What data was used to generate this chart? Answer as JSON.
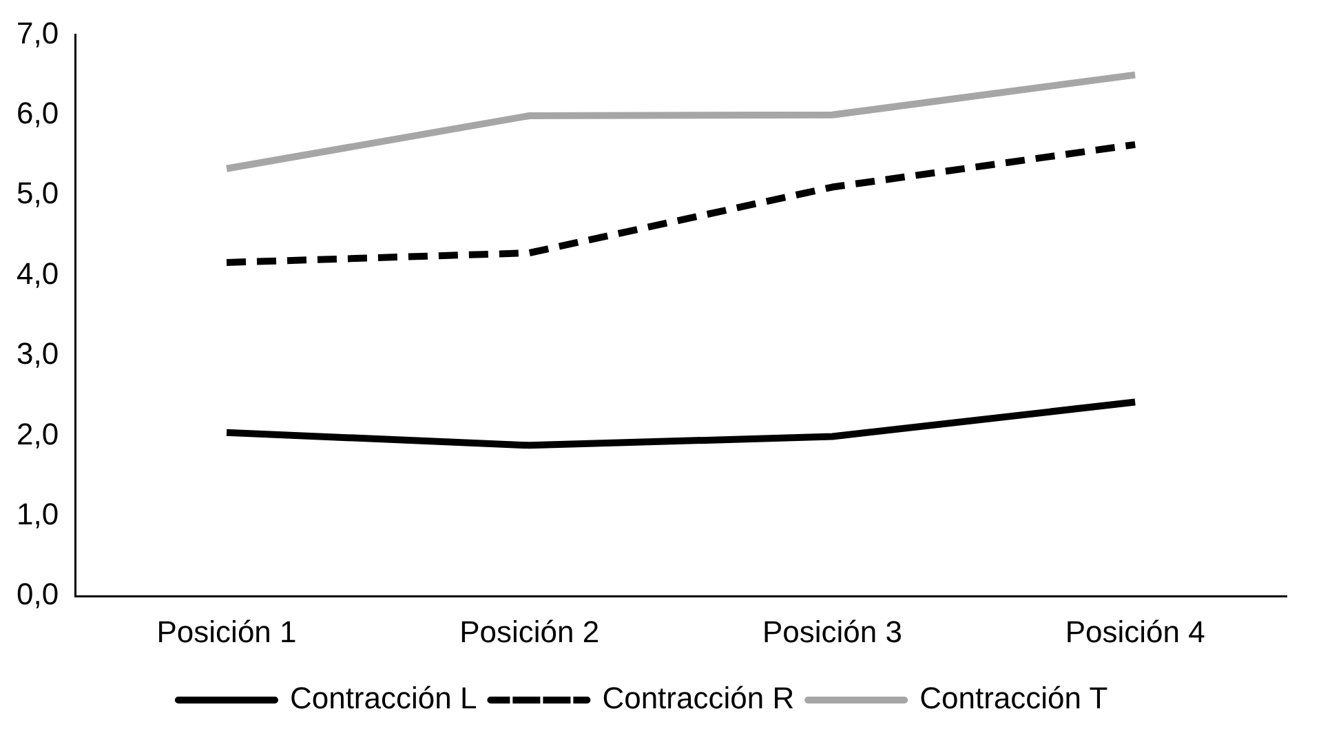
{
  "chart_data": {
    "type": "line",
    "categories": [
      "Posición 1",
      "Posición 2",
      "Posición 3",
      "Posición 4"
    ],
    "series": [
      {
        "name": "Contracción L",
        "color": "#000000",
        "line_style": "solid",
        "values": [
          2.04,
          1.88,
          1.99,
          2.42
        ]
      },
      {
        "name": "Contracción R",
        "color": "#000000",
        "line_style": "dashed",
        "values": [
          4.16,
          4.28,
          5.1,
          5.63
        ]
      },
      {
        "name": "Contracción T",
        "color": "#a6a6a6",
        "line_style": "solid",
        "values": [
          5.33,
          5.99,
          6.0,
          6.5
        ]
      }
    ],
    "ylim": [
      0,
      7
    ],
    "yticks": [
      {
        "value": 0,
        "label": "0,0"
      },
      {
        "value": 1,
        "label": "1,0"
      },
      {
        "value": 2,
        "label": "2,0"
      },
      {
        "value": 3,
        "label": "3,0"
      },
      {
        "value": 4,
        "label": "4,0"
      },
      {
        "value": 5,
        "label": "5,0"
      },
      {
        "value": 6,
        "label": "6,0"
      },
      {
        "value": 7,
        "label": "7,0"
      }
    ],
    "grid": false,
    "legend": "bottom",
    "marker": "none"
  }
}
